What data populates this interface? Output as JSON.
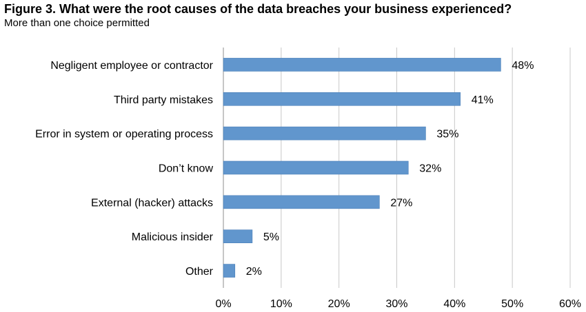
{
  "title": "Figure 3. What were the root causes of the data breaches your business experienced?",
  "subtitle": "More than one choice permitted",
  "colors": {
    "bar": "#6196cd",
    "bar_edge": "#4a7fb8",
    "grid": "#c8c8c8",
    "axis": "#8c8c8c",
    "text": "#000000"
  },
  "chart_data": {
    "type": "bar",
    "orientation": "horizontal",
    "title": "Figure 3. What were the root causes of the data breaches your business experienced?",
    "subtitle": "More than one choice permitted",
    "categories": [
      "Negligent employee or contractor",
      "Third party mistakes",
      "Error in system or operating process",
      "Don’t know",
      "External (hacker) attacks",
      "Malicious insider",
      "Other"
    ],
    "values": [
      48,
      41,
      35,
      32,
      27,
      5,
      2
    ],
    "value_labels": [
      "48%",
      "41%",
      "35%",
      "32%",
      "27%",
      "5%",
      "2%"
    ],
    "xlim": [
      0,
      60
    ],
    "xticks": [
      0,
      10,
      20,
      30,
      40,
      50,
      60
    ],
    "xtick_labels": [
      "0%",
      "10%",
      "20%",
      "30%",
      "40%",
      "50%",
      "60%"
    ],
    "grid": true,
    "legend": false
  }
}
